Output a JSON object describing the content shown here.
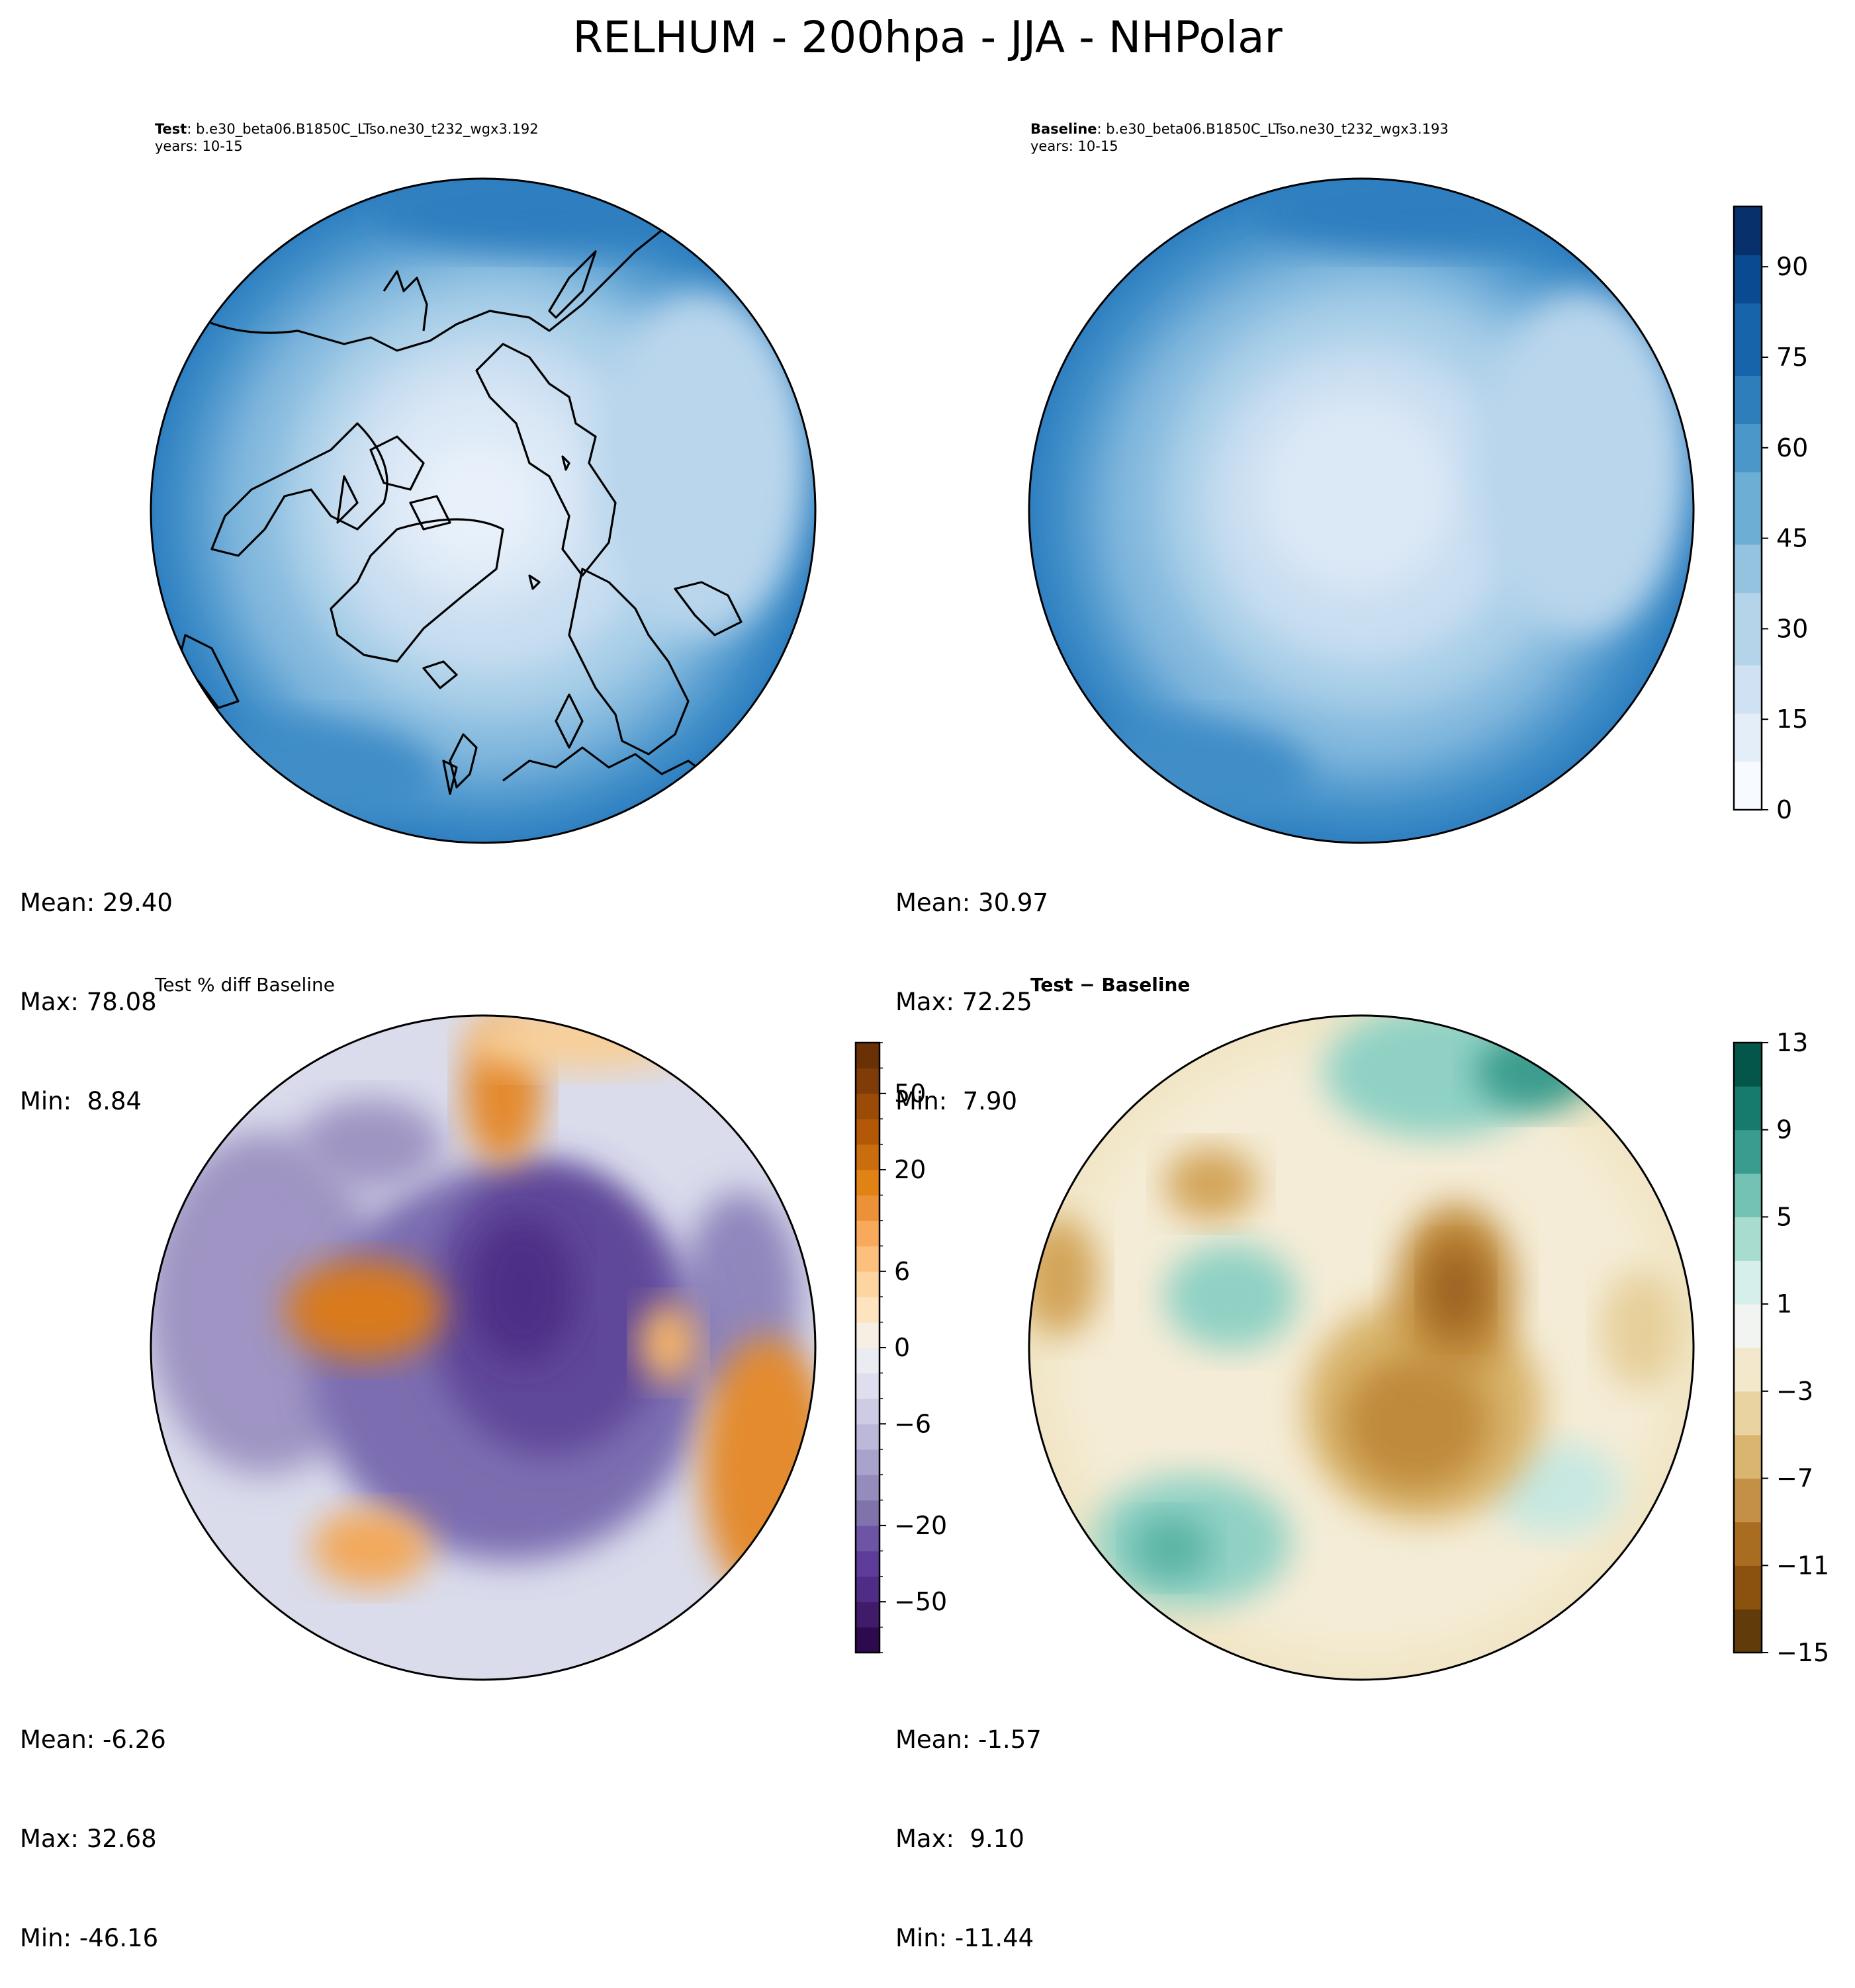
{
  "title": "RELHUM - 200hpa - JJA - NHPolar",
  "panels": [
    {
      "id": "test",
      "label_bold": "Test",
      "label_rest": ": b.e30_beta06.B1850C_LTso.ne30_t232_wgx3.192",
      "sub": "years: 10-15",
      "stats": {
        "mean": "Mean: 29.40",
        "max": "Max: 78.08",
        "min": "Min:  8.84"
      }
    },
    {
      "id": "baseline",
      "label_bold": "Baseline",
      "label_rest": ": b.e30_beta06.B1850C_LTso.ne30_t232_wgx3.193",
      "sub": "years: 10-15",
      "stats": {
        "mean": "Mean: 30.97",
        "max": "Max: 72.25",
        "min": "Min:  7.90"
      }
    },
    {
      "id": "pctdiff",
      "label": "Test % diff Baseline",
      "stats": {
        "mean": "Mean: -6.26",
        "max": "Max: 32.68",
        "min": "Min: -46.16"
      }
    },
    {
      "id": "diff",
      "label": "Test − Baseline",
      "stats": {
        "mean": "Mean: -1.57",
        "max": "Max:  9.10",
        "min": "Min: -11.44"
      }
    }
  ],
  "chart_data": [
    {
      "type": "heatmap",
      "projection": "north polar stereographic",
      "title": "Test",
      "colormap": "Blues",
      "stats": {
        "mean": 29.4,
        "max": 78.08,
        "min": 8.84
      },
      "colorbar": {
        "ticks": [
          0,
          15,
          30,
          45,
          60,
          75,
          90
        ],
        "range": [
          0,
          100
        ]
      }
    },
    {
      "type": "heatmap",
      "projection": "north polar stereographic",
      "title": "Baseline",
      "colormap": "Blues",
      "stats": {
        "mean": 30.97,
        "max": 72.25,
        "min": 7.9
      },
      "colorbar": {
        "ticks": [
          0,
          15,
          30,
          45,
          60,
          75,
          90
        ],
        "range": [
          0,
          100
        ]
      }
    },
    {
      "type": "heatmap",
      "projection": "north polar stereographic",
      "title": "Test % diff Baseline",
      "colormap": "PuOr_r",
      "stats": {
        "mean": -6.26,
        "max": 32.68,
        "min": -46.16
      },
      "colorbar": {
        "levels": [
          -100,
          -75,
          -50,
          -40,
          -30,
          -20,
          -15,
          -10,
          -8,
          -6,
          -4,
          -2,
          0,
          2,
          4,
          6,
          8,
          10,
          15,
          20,
          30,
          40,
          50,
          75,
          100
        ],
        "tick_labels": [
          "50",
          "20",
          "6",
          "0",
          "−6",
          "−20",
          "−50"
        ],
        "tick_values": [
          50,
          20,
          6,
          0,
          -6,
          -20,
          -50
        ]
      }
    },
    {
      "type": "heatmap",
      "projection": "north polar stereographic",
      "title": "Test − Baseline",
      "colormap": "BrBG",
      "stats": {
        "mean": -1.57,
        "max": 9.1,
        "min": -11.44
      },
      "colorbar": {
        "levels": [
          -15,
          -13,
          -11,
          -9,
          -7,
          -5,
          -3,
          -1,
          1,
          3,
          5,
          7,
          9,
          11,
          13
        ],
        "tick_labels": [
          "13",
          "9",
          "5",
          "1",
          "−3",
          "−7",
          "−11",
          "−15"
        ],
        "tick_values": [
          13,
          9,
          5,
          1,
          -3,
          -7,
          -11,
          -15
        ]
      }
    }
  ]
}
